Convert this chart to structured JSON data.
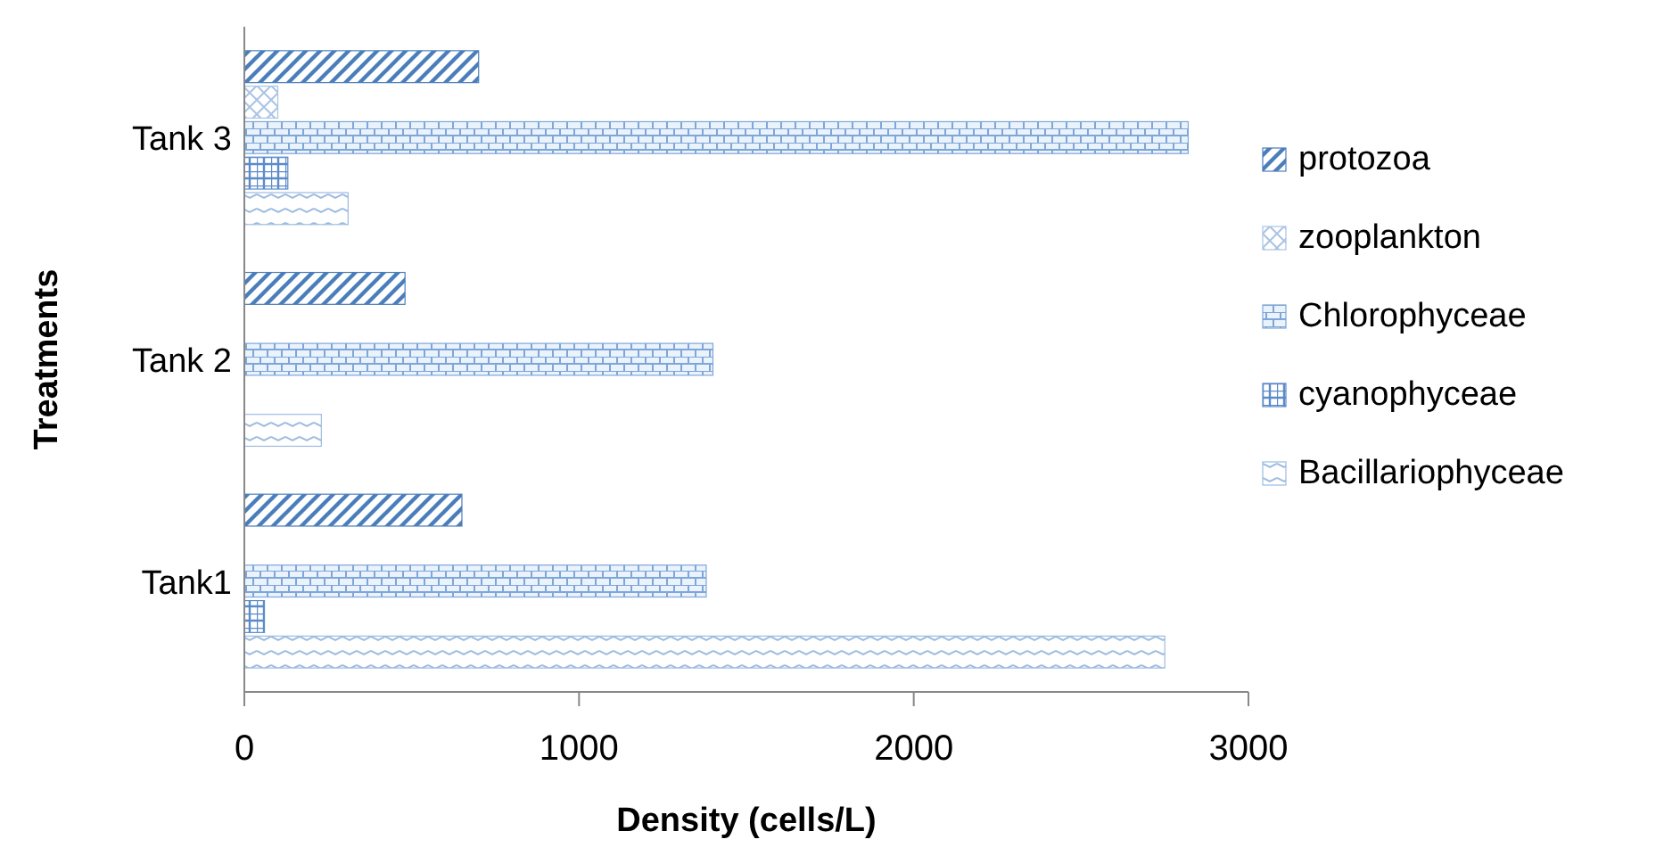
{
  "chart_data": {
    "type": "bar",
    "orientation": "horizontal",
    "categories": [
      "Tank 3",
      "Tank 2",
      "Tank1"
    ],
    "series": [
      {
        "name": "protozoa",
        "color": "#4a7ebb",
        "values": [
          700,
          480,
          650
        ]
      },
      {
        "name": "zooplankton",
        "color": "#a9c4e4",
        "values": [
          100,
          0,
          0
        ]
      },
      {
        "name": "Chlorophyceae",
        "color": "#7ea6d8",
        "values": [
          2820,
          1400,
          1380
        ]
      },
      {
        "name": "cyanophyceae",
        "color": "#5b8bc9",
        "values": [
          130,
          0,
          60
        ]
      },
      {
        "name": "Bacillariophyceae",
        "color": "#9dbbe0",
        "values": [
          310,
          230,
          2750
        ]
      }
    ],
    "xlim": [
      0,
      3000
    ],
    "xticks": [
      0,
      1000,
      2000,
      3000
    ],
    "xlabel": "Density (cells/L)",
    "ylabel": "Treatments",
    "legend": "right",
    "grid": false
  }
}
